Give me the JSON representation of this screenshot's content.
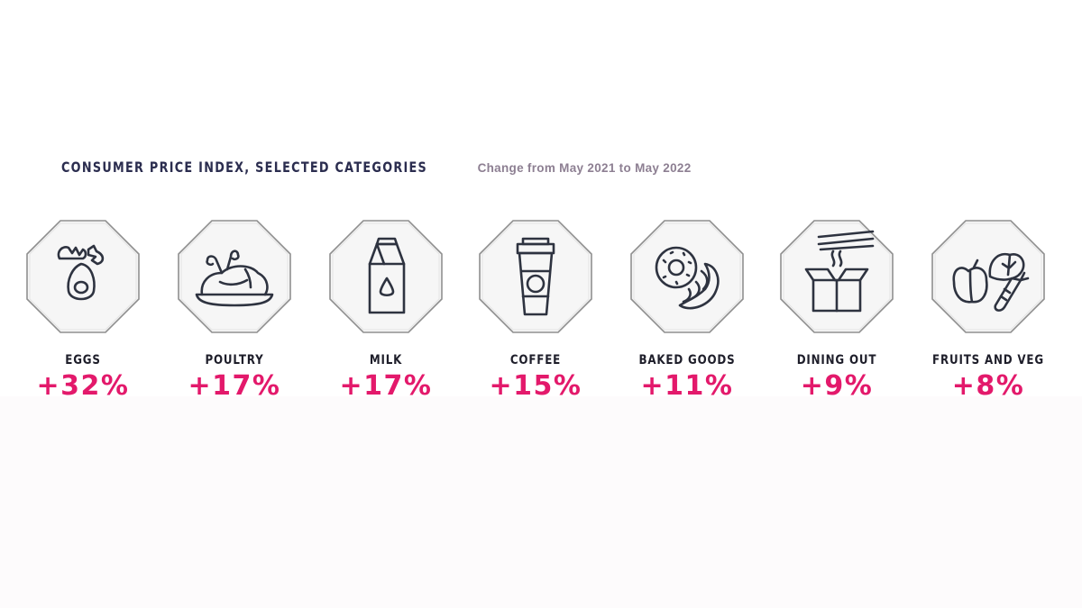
{
  "chart_data": {
    "type": "table",
    "title": "CONSUMER PRICE INDEX, SELECTED CATEGORIES",
    "subtitle": "Change from May 2021 to May 2022",
    "categories": [
      "EGGS",
      "POULTRY",
      "MILK",
      "COFFEE",
      "BAKED GOODS",
      "DINING OUT",
      "FRUITS AND VEG"
    ],
    "values": [
      32,
      17,
      17,
      15,
      11,
      9,
      8
    ],
    "value_labels": [
      "+32%",
      "+17%",
      "+17%",
      "+15%",
      "+11%",
      "+9%",
      "+8%"
    ],
    "icons": [
      "egg-icon",
      "roast-chicken-icon",
      "milk-carton-icon",
      "coffee-cup-icon",
      "donut-croissant-icon",
      "takeout-box-chopsticks-icon",
      "vegetables-icon"
    ]
  },
  "colors": {
    "title": "#2b2d4f",
    "subtitle": "#8d7f92",
    "label": "#1e1e2a",
    "accent": "#e3196b",
    "tile_fill": "#f6f6f6",
    "tile_border": "#8f8f8f"
  }
}
